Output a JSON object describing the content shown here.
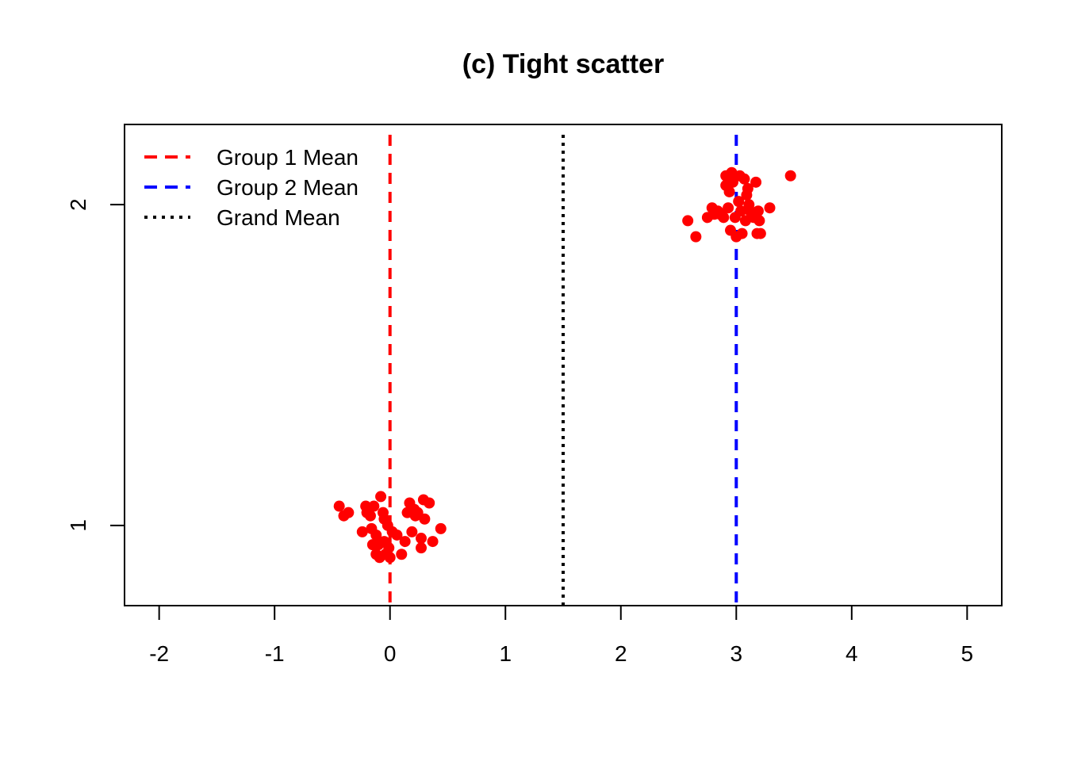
{
  "chart_data": {
    "type": "scatter",
    "title": "(c) Tight scatter",
    "xlabel": "",
    "ylabel": "",
    "xlim": [
      -2.3,
      5.3
    ],
    "ylim": [
      0.75,
      2.25
    ],
    "x_ticks": [
      -2,
      -1,
      0,
      1,
      2,
      3,
      4,
      5
    ],
    "x_tick_labels": [
      "-2",
      "-1",
      "0",
      "1",
      "2",
      "3",
      "4",
      "5"
    ],
    "y_ticks": [
      1,
      2
    ],
    "y_tick_labels": [
      "1",
      "2"
    ],
    "grid": false,
    "legend_position": "top-left",
    "point_color": "#ff0000",
    "series": [
      {
        "group": 1,
        "points": [
          {
            "x": -0.44,
            "y": 1.06
          },
          {
            "x": -0.4,
            "y": 1.03
          },
          {
            "x": -0.36,
            "y": 1.04
          },
          {
            "x": -0.24,
            "y": 0.98
          },
          {
            "x": -0.21,
            "y": 1.06
          },
          {
            "x": -0.2,
            "y": 1.04
          },
          {
            "x": -0.17,
            "y": 1.03
          },
          {
            "x": -0.16,
            "y": 0.99
          },
          {
            "x": -0.15,
            "y": 0.94
          },
          {
            "x": -0.14,
            "y": 1.06
          },
          {
            "x": -0.12,
            "y": 0.97
          },
          {
            "x": -0.12,
            "y": 0.91
          },
          {
            "x": -0.1,
            "y": 0.94
          },
          {
            "x": -0.09,
            "y": 0.9
          },
          {
            "x": -0.08,
            "y": 1.09
          },
          {
            "x": -0.06,
            "y": 1.04
          },
          {
            "x": -0.05,
            "y": 1.02
          },
          {
            "x": -0.05,
            "y": 0.95
          },
          {
            "x": -0.04,
            "y": 0.91
          },
          {
            "x": -0.02,
            "y": 1.0
          },
          {
            "x": -0.01,
            "y": 0.93
          },
          {
            "x": 0.0,
            "y": 0.9
          },
          {
            "x": 0.02,
            "y": 0.98
          },
          {
            "x": 0.06,
            "y": 0.97
          },
          {
            "x": 0.1,
            "y": 0.91
          },
          {
            "x": 0.13,
            "y": 0.95
          },
          {
            "x": 0.15,
            "y": 1.04
          },
          {
            "x": 0.17,
            "y": 1.07
          },
          {
            "x": 0.19,
            "y": 0.98
          },
          {
            "x": 0.21,
            "y": 1.05
          },
          {
            "x": 0.22,
            "y": 1.03
          },
          {
            "x": 0.24,
            "y": 1.04
          },
          {
            "x": 0.27,
            "y": 0.93
          },
          {
            "x": 0.27,
            "y": 0.96
          },
          {
            "x": 0.29,
            "y": 1.08
          },
          {
            "x": 0.3,
            "y": 1.02
          },
          {
            "x": 0.34,
            "y": 1.07
          },
          {
            "x": 0.37,
            "y": 0.95
          },
          {
            "x": 0.44,
            "y": 0.99
          }
        ]
      },
      {
        "group": 2,
        "points": [
          {
            "x": 2.58,
            "y": 1.95
          },
          {
            "x": 2.65,
            "y": 1.9
          },
          {
            "x": 2.75,
            "y": 1.96
          },
          {
            "x": 2.79,
            "y": 1.99
          },
          {
            "x": 2.81,
            "y": 1.97
          },
          {
            "x": 2.84,
            "y": 1.98
          },
          {
            "x": 2.86,
            "y": 1.97
          },
          {
            "x": 2.89,
            "y": 1.96
          },
          {
            "x": 2.91,
            "y": 2.06
          },
          {
            "x": 2.91,
            "y": 2.09
          },
          {
            "x": 2.93,
            "y": 1.99
          },
          {
            "x": 2.94,
            "y": 2.04
          },
          {
            "x": 2.95,
            "y": 1.92
          },
          {
            "x": 2.96,
            "y": 2.1
          },
          {
            "x": 2.97,
            "y": 2.07
          },
          {
            "x": 2.99,
            "y": 1.96
          },
          {
            "x": 3.0,
            "y": 1.9
          },
          {
            "x": 3.02,
            "y": 2.01
          },
          {
            "x": 3.03,
            "y": 2.09
          },
          {
            "x": 3.04,
            "y": 1.98
          },
          {
            "x": 3.05,
            "y": 1.91
          },
          {
            "x": 3.07,
            "y": 2.08
          },
          {
            "x": 3.08,
            "y": 1.95
          },
          {
            "x": 3.09,
            "y": 2.03
          },
          {
            "x": 3.1,
            "y": 2.05
          },
          {
            "x": 3.11,
            "y": 2.0
          },
          {
            "x": 3.12,
            "y": 1.98
          },
          {
            "x": 3.15,
            "y": 1.96
          },
          {
            "x": 3.17,
            "y": 2.07
          },
          {
            "x": 3.18,
            "y": 1.91
          },
          {
            "x": 3.19,
            "y": 1.98
          },
          {
            "x": 3.2,
            "y": 1.95
          },
          {
            "x": 3.21,
            "y": 1.91
          },
          {
            "x": 3.29,
            "y": 1.99
          },
          {
            "x": 3.47,
            "y": 2.09
          }
        ]
      }
    ],
    "reference_lines": [
      {
        "name": "Group 1 Mean",
        "x": 0.0,
        "color": "#ff0000",
        "style": "dashed"
      },
      {
        "name": "Group 2 Mean",
        "x": 3.0,
        "color": "#0000ff",
        "style": "dashed"
      },
      {
        "name": "Grand Mean",
        "x": 1.5,
        "color": "#000000",
        "style": "dotted"
      }
    ]
  }
}
